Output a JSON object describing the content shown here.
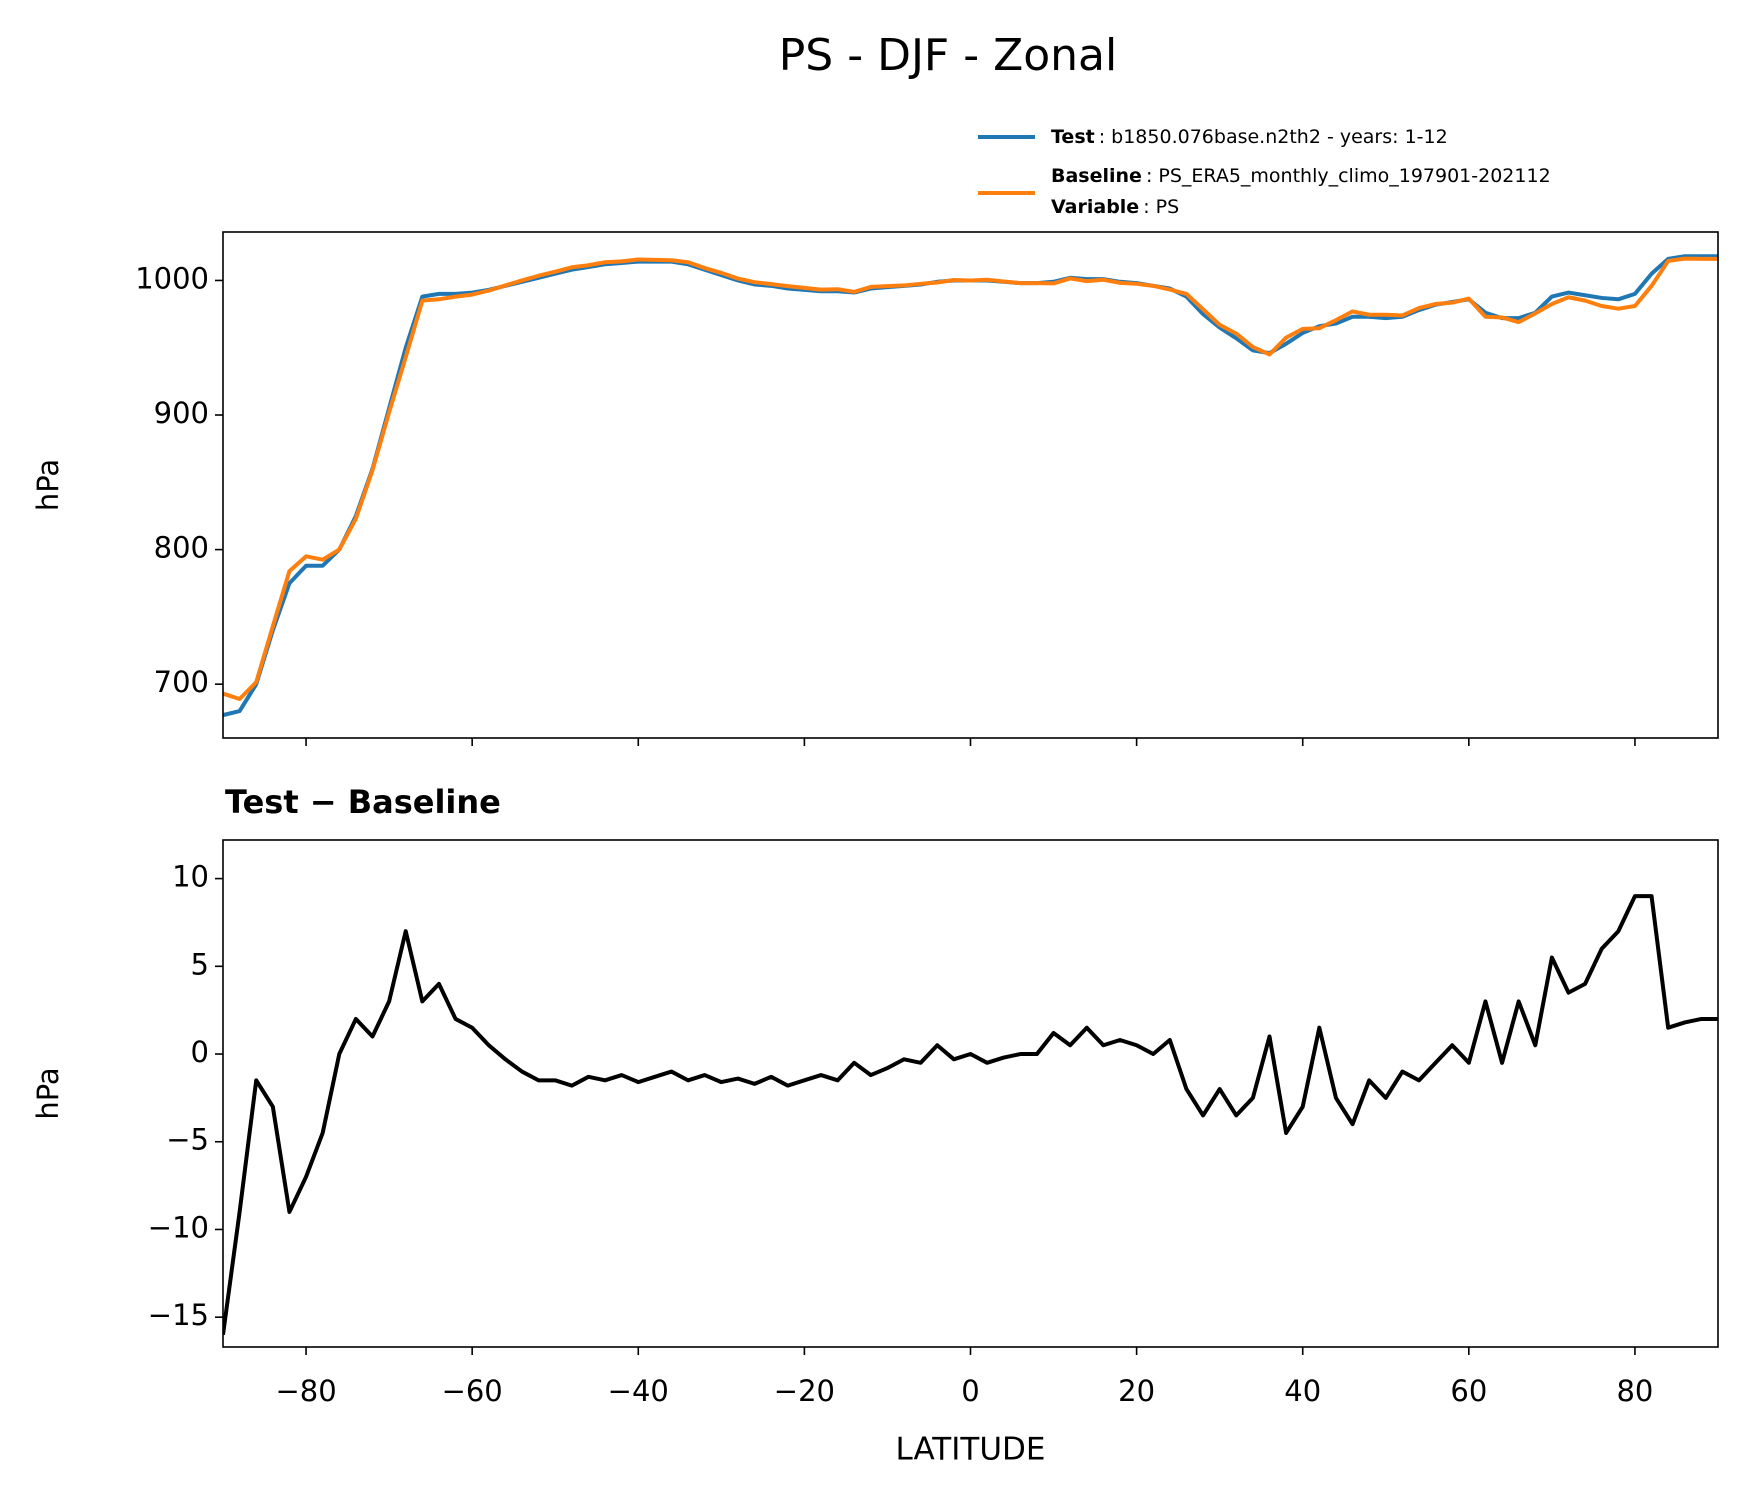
{
  "title": "PS - DJF - Zonal",
  "chart_data": [
    {
      "type": "line",
      "ylabel": "hPa",
      "x": [
        -90,
        -88,
        -86,
        -84,
        -82,
        -80,
        -78,
        -76,
        -74,
        -72,
        -70,
        -68,
        -66,
        -64,
        -62,
        -60,
        -58,
        -56,
        -54,
        -52,
        -50,
        -48,
        -46,
        -44,
        -42,
        -40,
        -38,
        -36,
        -34,
        -32,
        -30,
        -28,
        -26,
        -24,
        -22,
        -20,
        -18,
        -16,
        -14,
        -12,
        -10,
        -8,
        -6,
        -4,
        -2,
        0,
        2,
        4,
        6,
        8,
        10,
        12,
        14,
        16,
        18,
        20,
        22,
        24,
        26,
        28,
        30,
        32,
        34,
        36,
        38,
        40,
        42,
        44,
        46,
        48,
        50,
        52,
        54,
        56,
        58,
        60,
        62,
        64,
        66,
        68,
        70,
        72,
        74,
        76,
        78,
        80,
        82,
        84,
        86,
        88,
        90
      ],
      "series": [
        {
          "name": "Test",
          "detail": ": b1850.076base.n2th2 - years: 1-12",
          "color": "#1f77b4",
          "values": [
            677,
            680,
            700,
            740,
            775,
            788,
            788,
            800,
            825,
            860,
            905,
            950,
            988,
            990,
            990,
            991,
            993,
            996,
            999,
            1002,
            1005,
            1008,
            1010,
            1012,
            1013,
            1014,
            1014,
            1014,
            1012,
            1008,
            1004,
            1000,
            997,
            996,
            994,
            993,
            992,
            992,
            991,
            994,
            995,
            996,
            997,
            999,
            1000,
            1000,
            1000,
            999,
            998,
            998,
            999,
            1002,
            1001,
            1001,
            999,
            998,
            996,
            994,
            988,
            975,
            965,
            957,
            948,
            946,
            953,
            961,
            966,
            968,
            973,
            973,
            972,
            973,
            978,
            982,
            984,
            986,
            976,
            972,
            972,
            976,
            988,
            991,
            989,
            987,
            986,
            990,
            1005,
            1016,
            1018,
            1018,
            1018
          ]
        },
        {
          "name": "Baseline",
          "detail": ": PS_ERA5_monthly_climo_197901-202112",
          "color": "#ff7f0e",
          "values": [
            693,
            689,
            701.5,
            743,
            784,
            795,
            792.5,
            800,
            823,
            859,
            902,
            943,
            985,
            986,
            988,
            989.5,
            992.5,
            996.3,
            1000,
            1003.5,
            1006.5,
            1009.8,
            1011.3,
            1013.5,
            1014.2,
            1015.6,
            1015.3,
            1015,
            1013.5,
            1009.2,
            1005.6,
            1001.4,
            998.7,
            997.3,
            995.8,
            994.5,
            993.2,
            993.5,
            991.5,
            995.2,
            995.8,
            996.3,
            997.5,
            998.5,
            1000.3,
            1000,
            1000.5,
            999.2,
            998,
            998,
            997.8,
            1001.5,
            999.5,
            1000.5,
            998.2,
            997.5,
            996,
            993.2,
            990,
            978.5,
            967,
            960.5,
            950.5,
            945,
            957.5,
            964,
            964.5,
            970.5,
            977,
            974.5,
            974.5,
            974,
            979.5,
            982.5,
            983.5,
            986.5,
            973,
            972.5,
            969,
            975.5,
            982.5,
            987.5,
            985,
            981,
            979,
            981,
            996,
            1014.5,
            1016.2,
            1016,
            1016
          ]
        }
      ],
      "legend_extra": {
        "name": "Variable",
        "detail": ": PS"
      },
      "xlim": [
        -90,
        90
      ],
      "xticks": [
        -80,
        -60,
        -40,
        -20,
        0,
        20,
        40,
        60,
        80
      ],
      "xtick_labels": false,
      "ylim": [
        660,
        1036
      ],
      "yticks": [
        700,
        800,
        900,
        1000
      ]
    },
    {
      "type": "line",
      "subtitle": "Test − Baseline",
      "ylabel": "hPa",
      "xlabel": "LATITUDE",
      "x": [
        -90,
        -88,
        -86,
        -84,
        -82,
        -80,
        -78,
        -76,
        -74,
        -72,
        -70,
        -68,
        -66,
        -64,
        -62,
        -60,
        -58,
        -56,
        -54,
        -52,
        -50,
        -48,
        -46,
        -44,
        -42,
        -40,
        -38,
        -36,
        -34,
        -32,
        -30,
        -28,
        -26,
        -24,
        -22,
        -20,
        -18,
        -16,
        -14,
        -12,
        -10,
        -8,
        -6,
        -4,
        -2,
        0,
        2,
        4,
        6,
        8,
        10,
        12,
        14,
        16,
        18,
        20,
        22,
        24,
        26,
        28,
        30,
        32,
        34,
        36,
        38,
        40,
        42,
        44,
        46,
        48,
        50,
        52,
        54,
        56,
        58,
        60,
        62,
        64,
        66,
        68,
        70,
        72,
        74,
        76,
        78,
        80,
        82,
        84,
        86,
        88,
        90
      ],
      "series": [
        {
          "color": "#000000",
          "values": [
            -16,
            -9,
            -1.5,
            -3,
            -9,
            -7,
            -4.5,
            0,
            2,
            1,
            3,
            7,
            3,
            4,
            2,
            1.5,
            0.5,
            -0.3,
            -1,
            -1.5,
            -1.5,
            -1.8,
            -1.3,
            -1.5,
            -1.2,
            -1.6,
            -1.3,
            -1,
            -1.5,
            -1.2,
            -1.6,
            -1.4,
            -1.7,
            -1.3,
            -1.8,
            -1.5,
            -1.2,
            -1.5,
            -0.5,
            -1.2,
            -0.8,
            -0.3,
            -0.5,
            0.5,
            -0.3,
            0,
            -0.5,
            -0.2,
            0,
            0,
            1.2,
            0.5,
            1.5,
            0.5,
            0.8,
            0.5,
            0,
            0.8,
            -2,
            -3.5,
            -2,
            -3.5,
            -2.5,
            1,
            -4.5,
            -3,
            1.5,
            -2.5,
            -4,
            -1.5,
            -2.5,
            -1,
            -1.5,
            -0.5,
            0.5,
            -0.5,
            3,
            -0.5,
            3,
            0.5,
            5.5,
            3.5,
            4,
            6,
            7,
            9,
            9,
            1.5,
            1.8,
            2,
            2
          ]
        }
      ],
      "xlim": [
        -90,
        90
      ],
      "xticks": [
        {
          "value": -80,
          "label": "−80"
        },
        {
          "value": -60,
          "label": "−60"
        },
        {
          "value": -40,
          "label": "−40"
        },
        {
          "value": -20,
          "label": "−20"
        },
        0,
        20,
        40,
        60,
        80
      ],
      "ylim": [
        -16.7,
        12.2
      ],
      "yticks": [
        {
          "value": -15,
          "label": "−15"
        },
        {
          "value": -10,
          "label": "−10"
        },
        {
          "value": -5,
          "label": "−5"
        },
        0,
        5,
        10
      ]
    }
  ]
}
